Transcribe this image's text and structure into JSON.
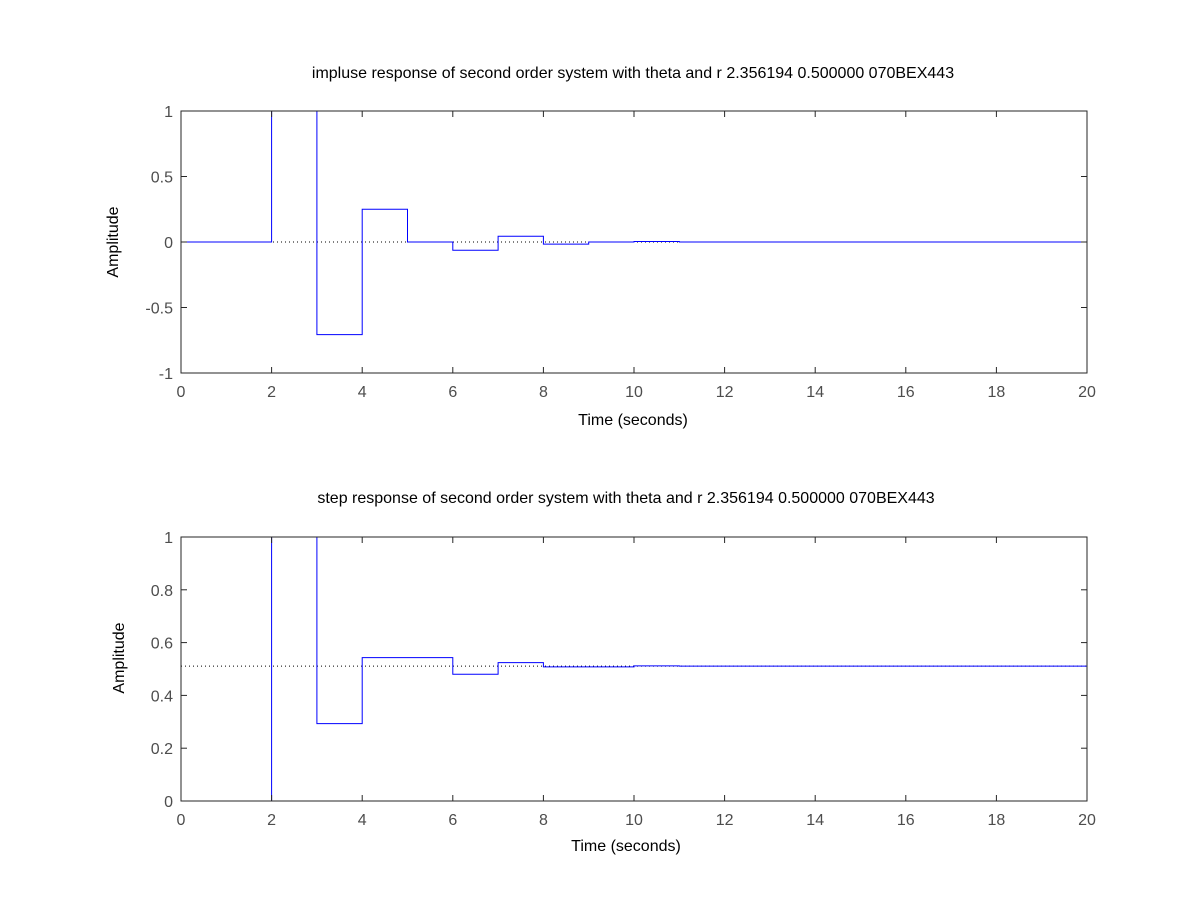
{
  "chart_data": [
    {
      "type": "line",
      "style": "stairs",
      "title": "impluse response of second order system with theta and r 2.356194 0.500000 070BEX443",
      "xlabel": "Time (seconds)",
      "ylabel": "Amplitude",
      "xlim": [
        0,
        20
      ],
      "ylim": [
        -1,
        1
      ],
      "xticks": [
        "0",
        "2",
        "4",
        "6",
        "8",
        "10",
        "12",
        "14",
        "16",
        "18",
        "20"
      ],
      "yticks": [
        "-1",
        "-0.5",
        "0",
        "0.5",
        "1"
      ],
      "grid": false,
      "series_color": "#0000ff",
      "reference_line": {
        "y": 0,
        "style": "dotted",
        "color": "#000000"
      },
      "series": [
        {
          "x": [
            0,
            1,
            2,
            3,
            4,
            5,
            6,
            7,
            8,
            9,
            10,
            11,
            12,
            13,
            14,
            15,
            16,
            17,
            18,
            19,
            20
          ],
          "values": [
            0,
            0,
            1.414,
            -0.707,
            0.25,
            0,
            -0.0625,
            0.044,
            -0.016,
            0,
            0.004,
            0,
            0,
            0,
            0,
            0,
            0,
            0,
            0,
            0,
            0
          ]
        }
      ]
    },
    {
      "type": "line",
      "style": "stairs",
      "title": "step response of second order system with theta and r 2.356194 0.500000 070BEX443",
      "xlabel": "Time (seconds)",
      "ylabel": "Amplitude",
      "xlim": [
        0,
        20
      ],
      "ylim": [
        0,
        1
      ],
      "xticks": [
        "0",
        "2",
        "4",
        "6",
        "8",
        "10",
        "12",
        "14",
        "16",
        "18",
        "20"
      ],
      "yticks": [
        "0",
        "0.2",
        "0.4",
        "0.6",
        "0.8",
        "1"
      ],
      "grid": false,
      "series_color": "#0000ff",
      "reference_line": {
        "y": 0.511,
        "style": "dotted",
        "color": "#000000"
      },
      "series": [
        {
          "x": [
            0,
            1,
            2,
            3,
            4,
            5,
            6,
            7,
            8,
            9,
            10,
            11,
            12,
            13,
            14,
            15,
            16,
            17,
            18,
            19,
            20
          ],
          "values": [
            0,
            0,
            1.414,
            0.293,
            0.543,
            0.543,
            0.48,
            0.524,
            0.508,
            0.508,
            0.512,
            0.511,
            0.511,
            0.511,
            0.511,
            0.511,
            0.511,
            0.511,
            0.511,
            0.511,
            0.511
          ]
        }
      ]
    }
  ]
}
